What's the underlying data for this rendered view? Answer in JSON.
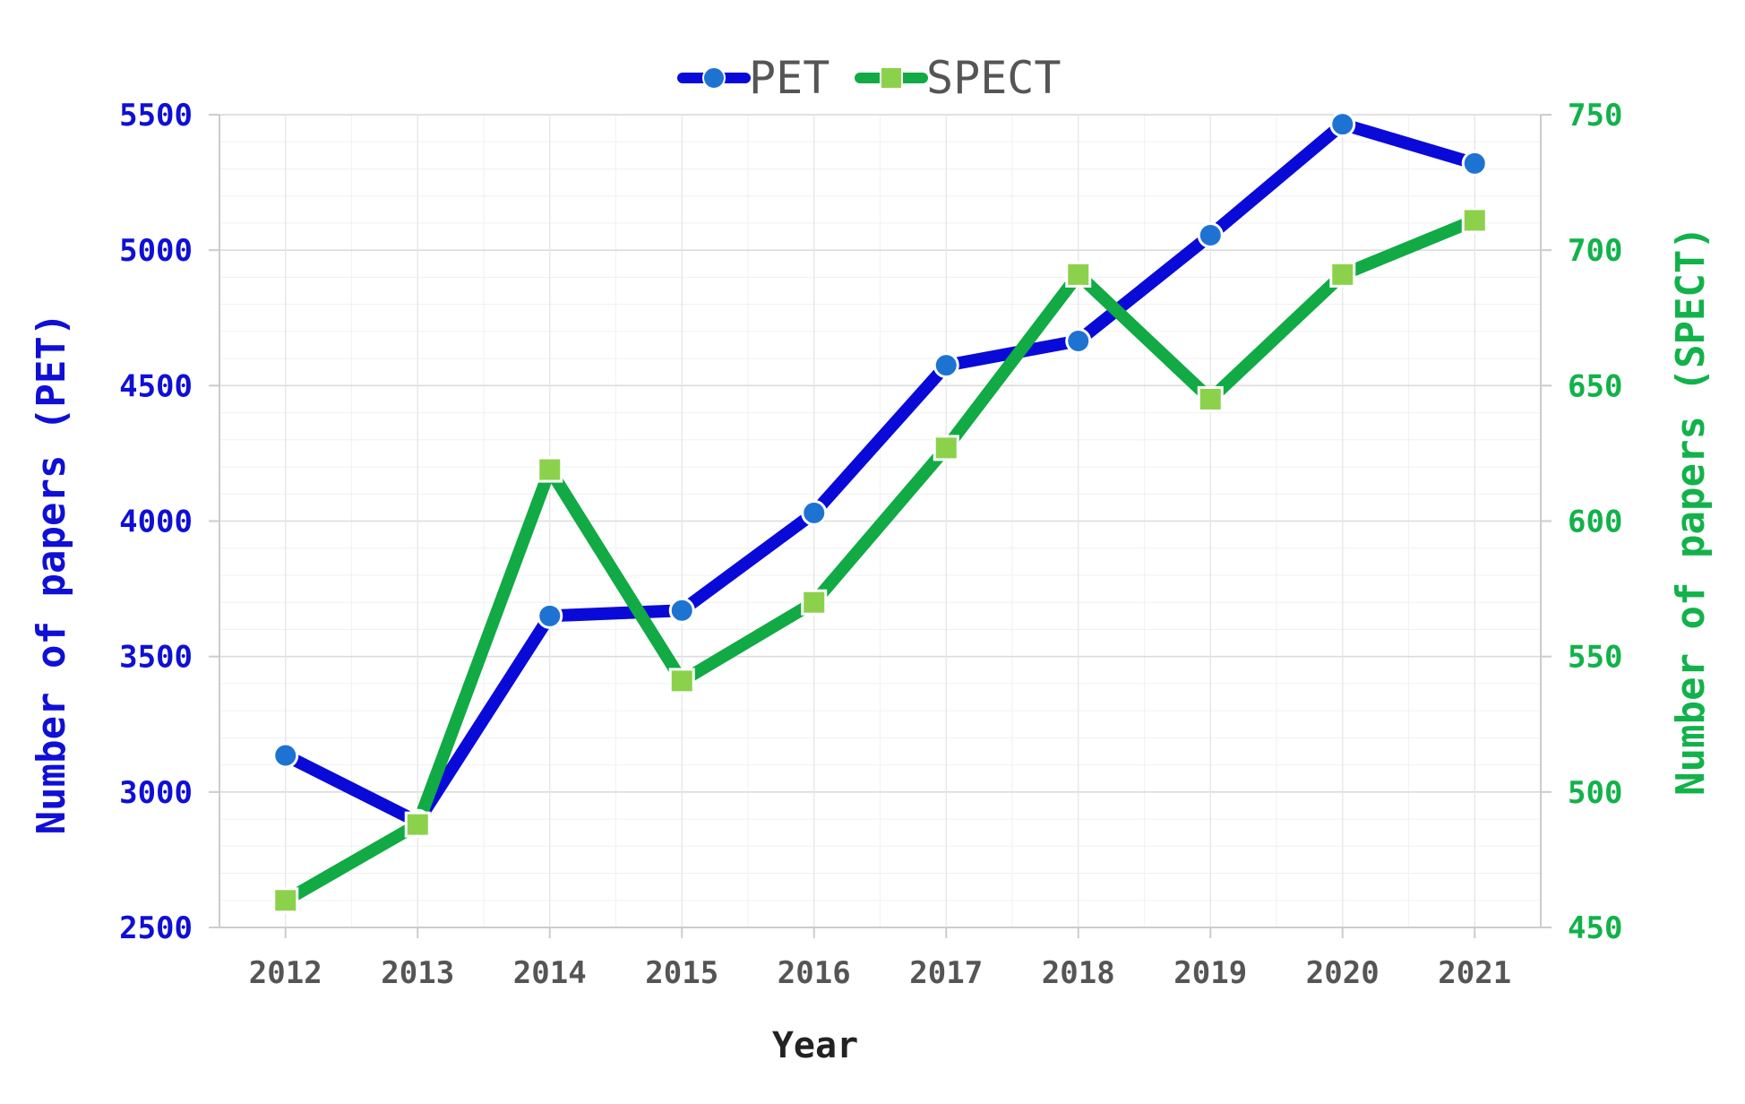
{
  "chart_data": {
    "type": "line",
    "x": [
      "2012",
      "2013",
      "2014",
      "2015",
      "2016",
      "2017",
      "2018",
      "2019",
      "2020",
      "2021"
    ],
    "xlabel": "Year",
    "grid": true,
    "legend_position": "top-center",
    "y_left": {
      "label": "Number of papers (PET)",
      "lim": [
        2500,
        5500
      ],
      "ticks": [
        "2500",
        "3000",
        "3500",
        "4000",
        "4500",
        "5000",
        "5500"
      ],
      "color": "#0f0fd6"
    },
    "y_right": {
      "label": "Number of papers (SPECT)",
      "lim": [
        450,
        750
      ],
      "ticks": [
        "450",
        "500",
        "550",
        "600",
        "650",
        "700",
        "750"
      ],
      "color": "#12b24a"
    },
    "series": [
      {
        "name": "PET",
        "axis": "left",
        "marker": "circle",
        "line_color": "#0a0ad8",
        "marker_color": "#1e73d2",
        "values": [
          3135,
          2890,
          3650,
          3670,
          4030,
          4575,
          4665,
          5055,
          5465,
          5320
        ]
      },
      {
        "name": "SPECT",
        "axis": "right",
        "marker": "square",
        "line_color": "#11aa44",
        "marker_color": "#8cd14b",
        "values": [
          460,
          488,
          619,
          541,
          570,
          627,
          691,
          645,
          691,
          711
        ]
      }
    ]
  }
}
